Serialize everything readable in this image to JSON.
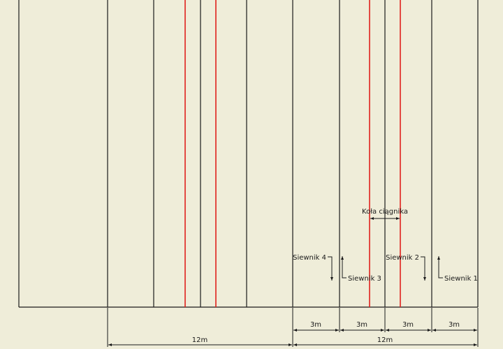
{
  "labels": {
    "tractor_wheels": "Koła ciągnika",
    "spreader_1": "Siewnik 1",
    "spreader_2": "Siewnik 2",
    "spreader_3": "Siewnik 3",
    "spreader_4": "Siewnik 4"
  },
  "dimensions": {
    "lane_width": "3m",
    "half_width": "12m"
  },
  "colors": {
    "background": "#efedd9",
    "lines": "#1a1a1a",
    "wheel_tracks": "#e0201c"
  }
}
